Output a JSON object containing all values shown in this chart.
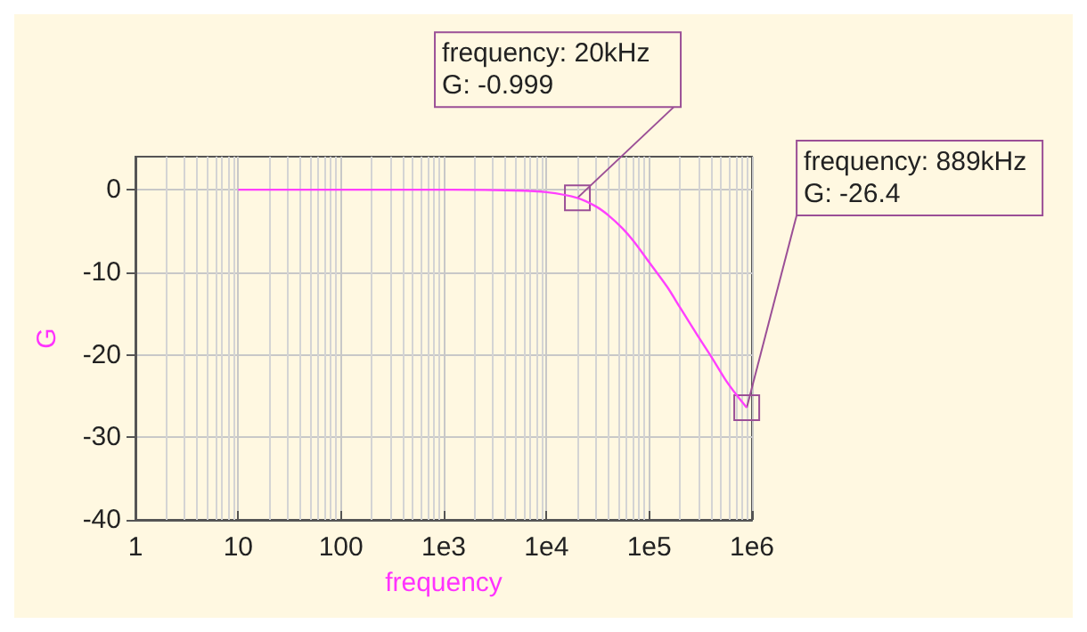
{
  "chart_data": {
    "type": "line",
    "xlabel": "frequency",
    "ylabel": "G",
    "log": "x",
    "grid": true,
    "marker": "none",
    "line_style": "solid",
    "xlim": [
      1,
      1000000
    ],
    "ylim": [
      -40,
      4
    ],
    "xticks": [
      1,
      10,
      100,
      {
        "value": 1000,
        "label": "1e3"
      },
      {
        "value": 10000,
        "label": "1e4"
      },
      {
        "value": 100000,
        "label": "1e5"
      },
      {
        "value": 1000000,
        "label": "1e6"
      }
    ],
    "yticks": [
      -40,
      -30,
      -20,
      -10,
      0
    ],
    "x": [
      10,
      100,
      1000,
      5000,
      10000,
      20000,
      30000,
      40000,
      55000,
      70000,
      100000,
      150000,
      200000,
      300000,
      400000,
      550000,
      700000,
      889000
    ],
    "series": [
      {
        "color": "#ff40ff",
        "values": [
          0,
          0,
          0,
          -0.1,
          -0.3,
          -0.999,
          -2,
          -3.1,
          -4.7,
          -6.2,
          -8.8,
          -11.8,
          -14.3,
          -17.8,
          -20.2,
          -23,
          -24.8,
          -26.4
        ]
      }
    ],
    "annotations": [
      {
        "text": "frequency: 20kHz\nG: -0.999",
        "x": 20000,
        "y": -0.999
      },
      {
        "text": "frequency: 889kHz\nG: -26.4",
        "x": 889000,
        "y": -26.4
      }
    ]
  }
}
